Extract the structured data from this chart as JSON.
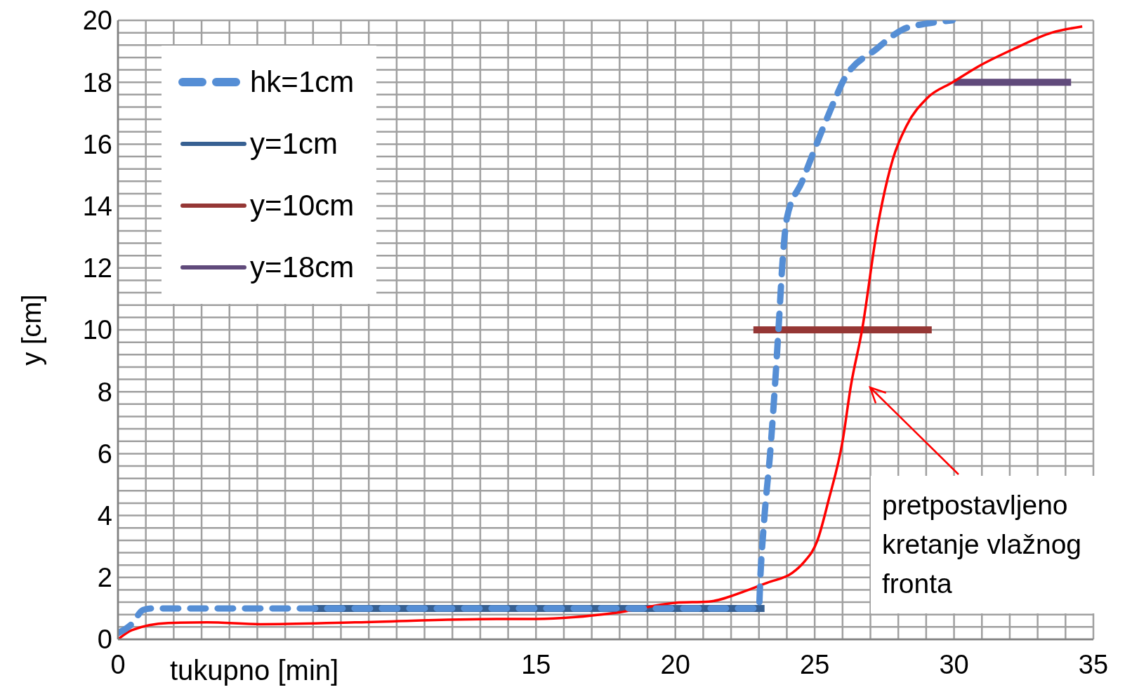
{
  "chart_data": {
    "type": "line",
    "xlabel": "tukupno [min]",
    "ylabel": "y [cm]",
    "xlim": [
      0,
      35
    ],
    "ylim": [
      0,
      20
    ],
    "xticks": [
      0,
      {
        "value": 1,
        "label": null
      },
      {
        "value": 2,
        "label": null
      },
      {
        "value": 3,
        "label": null
      },
      {
        "value": 4,
        "label": null
      },
      {
        "value": 5,
        "label": null
      },
      {
        "value": 6,
        "label": null
      },
      {
        "value": 7,
        "label": null
      },
      {
        "value": 8,
        "label": null
      },
      {
        "value": 9,
        "label": null
      },
      {
        "value": 10,
        "label": null
      },
      {
        "value": 11,
        "label": null
      },
      {
        "value": 12,
        "label": null
      },
      {
        "value": 13,
        "label": null
      },
      {
        "value": 14,
        "label": null
      },
      15,
      {
        "value": 16,
        "label": null
      },
      {
        "value": 17,
        "label": null
      },
      {
        "value": 18,
        "label": null
      },
      {
        "value": 19,
        "label": null
      },
      20,
      {
        "value": 21,
        "label": null
      },
      {
        "value": 22,
        "label": null
      },
      {
        "value": 23,
        "label": null
      },
      {
        "value": 24,
        "label": null
      },
      25,
      {
        "value": 26,
        "label": null
      },
      {
        "value": 27,
        "label": null
      },
      {
        "value": 28,
        "label": null
      },
      {
        "value": 29,
        "label": null
      },
      30,
      {
        "value": 31,
        "label": null
      },
      {
        "value": 32,
        "label": null
      },
      {
        "value": 33,
        "label": null
      },
      {
        "value": 34,
        "label": null
      },
      35
    ],
    "yticks": [
      0,
      {
        "value": 0.4,
        "label": null
      },
      {
        "value": 0.8,
        "label": null
      },
      {
        "value": 1.2,
        "label": null
      },
      {
        "value": 1.6,
        "label": null
      },
      2,
      {
        "value": 2.4,
        "label": null
      },
      {
        "value": 2.8,
        "label": null
      },
      {
        "value": 3.2,
        "label": null
      },
      {
        "value": 3.6,
        "label": null
      },
      4,
      {
        "value": 4.4,
        "label": null
      },
      {
        "value": 4.8,
        "label": null
      },
      {
        "value": 5.2,
        "label": null
      },
      {
        "value": 5.6,
        "label": null
      },
      6,
      {
        "value": 6.4,
        "label": null
      },
      {
        "value": 6.8,
        "label": null
      },
      {
        "value": 7.2,
        "label": null
      },
      {
        "value": 7.6,
        "label": null
      },
      8,
      {
        "value": 8.4,
        "label": null
      },
      {
        "value": 8.8,
        "label": null
      },
      {
        "value": 9.2,
        "label": null
      },
      {
        "value": 9.6,
        "label": null
      },
      10,
      {
        "value": 10.4,
        "label": null
      },
      {
        "value": 10.8,
        "label": null
      },
      {
        "value": 11.2,
        "label": null
      },
      {
        "value": 11.6,
        "label": null
      },
      12,
      {
        "value": 12.4,
        "label": null
      },
      {
        "value": 12.8,
        "label": null
      },
      {
        "value": 13.2,
        "label": null
      },
      {
        "value": 13.6,
        "label": null
      },
      14,
      {
        "value": 14.4,
        "label": null
      },
      {
        "value": 14.8,
        "label": null
      },
      {
        "value": 15.2,
        "label": null
      },
      {
        "value": 15.6,
        "label": null
      },
      16,
      {
        "value": 16.4,
        "label": null
      },
      {
        "value": 16.8,
        "label": null
      },
      {
        "value": 17.2,
        "label": null
      },
      {
        "value": 17.6,
        "label": null
      },
      18,
      {
        "value": 18.4,
        "label": null
      },
      {
        "value": 18.8,
        "label": null
      },
      {
        "value": 19.2,
        "label": null
      },
      {
        "value": 19.6,
        "label": null
      },
      20
    ],
    "grid": true,
    "legend": "top left",
    "marker": "none",
    "series": [
      {
        "name": "hk=1cm",
        "color": "#558ed5",
        "line_style": "dashed",
        "x": [
          0,
          0.5,
          0.9,
          1.2,
          23,
          23.05,
          23.2,
          23.4,
          23.56,
          23.7,
          23.87,
          24,
          24.55,
          25.2,
          25.8,
          26,
          27.25,
          28.15,
          29.05,
          29.95
        ],
        "values": [
          0.2,
          0.5,
          0.95,
          1,
          1,
          2,
          4,
          6,
          8,
          10,
          12.5,
          13.6,
          14.8,
          16.3,
          17.6,
          18,
          19.1,
          19.7,
          19.9,
          20
        ]
      },
      {
        "name": "y=1cm",
        "color": "#376092",
        "line_style": "solid",
        "x": [
          7,
          23.2
        ],
        "values": [
          1,
          1
        ]
      },
      {
        "name": "y=10cm",
        "color": "#953735",
        "line_style": "solid",
        "x": [
          22.8,
          29.2
        ],
        "values": [
          10,
          10
        ]
      },
      {
        "name": "y=18cm",
        "color": "#604a7b",
        "line_style": "solid",
        "x": [
          30,
          34.2
        ],
        "values": [
          18,
          18
        ]
      },
      {
        "color": "#ff0000",
        "line_style": "solid",
        "x": [
          0,
          0.5,
          1.8,
          3.2,
          5.1,
          8.5,
          13.6,
          15,
          17.9,
          20,
          21.2,
          22.6,
          23.3,
          24.2,
          24.6,
          25.1,
          25.5,
          26,
          26.3,
          26.7,
          27.25,
          27.8,
          28.3,
          29.05,
          29.95,
          30.85,
          32.2,
          33.5,
          34.6
        ],
        "values": [
          0,
          0.3,
          0.53,
          0.55,
          0.49,
          0.55,
          0.66,
          0.66,
          0.86,
          1.18,
          1.22,
          1.59,
          1.83,
          2.15,
          2.48,
          3.2,
          4.5,
          6.4,
          8.2,
          10,
          13.3,
          15.5,
          16.6,
          17.5,
          18,
          18.5,
          19.1,
          19.6,
          19.8
        ]
      }
    ],
    "annotations": [
      "pretpostavljeno kretanje vlažnog fronta"
    ]
  }
}
